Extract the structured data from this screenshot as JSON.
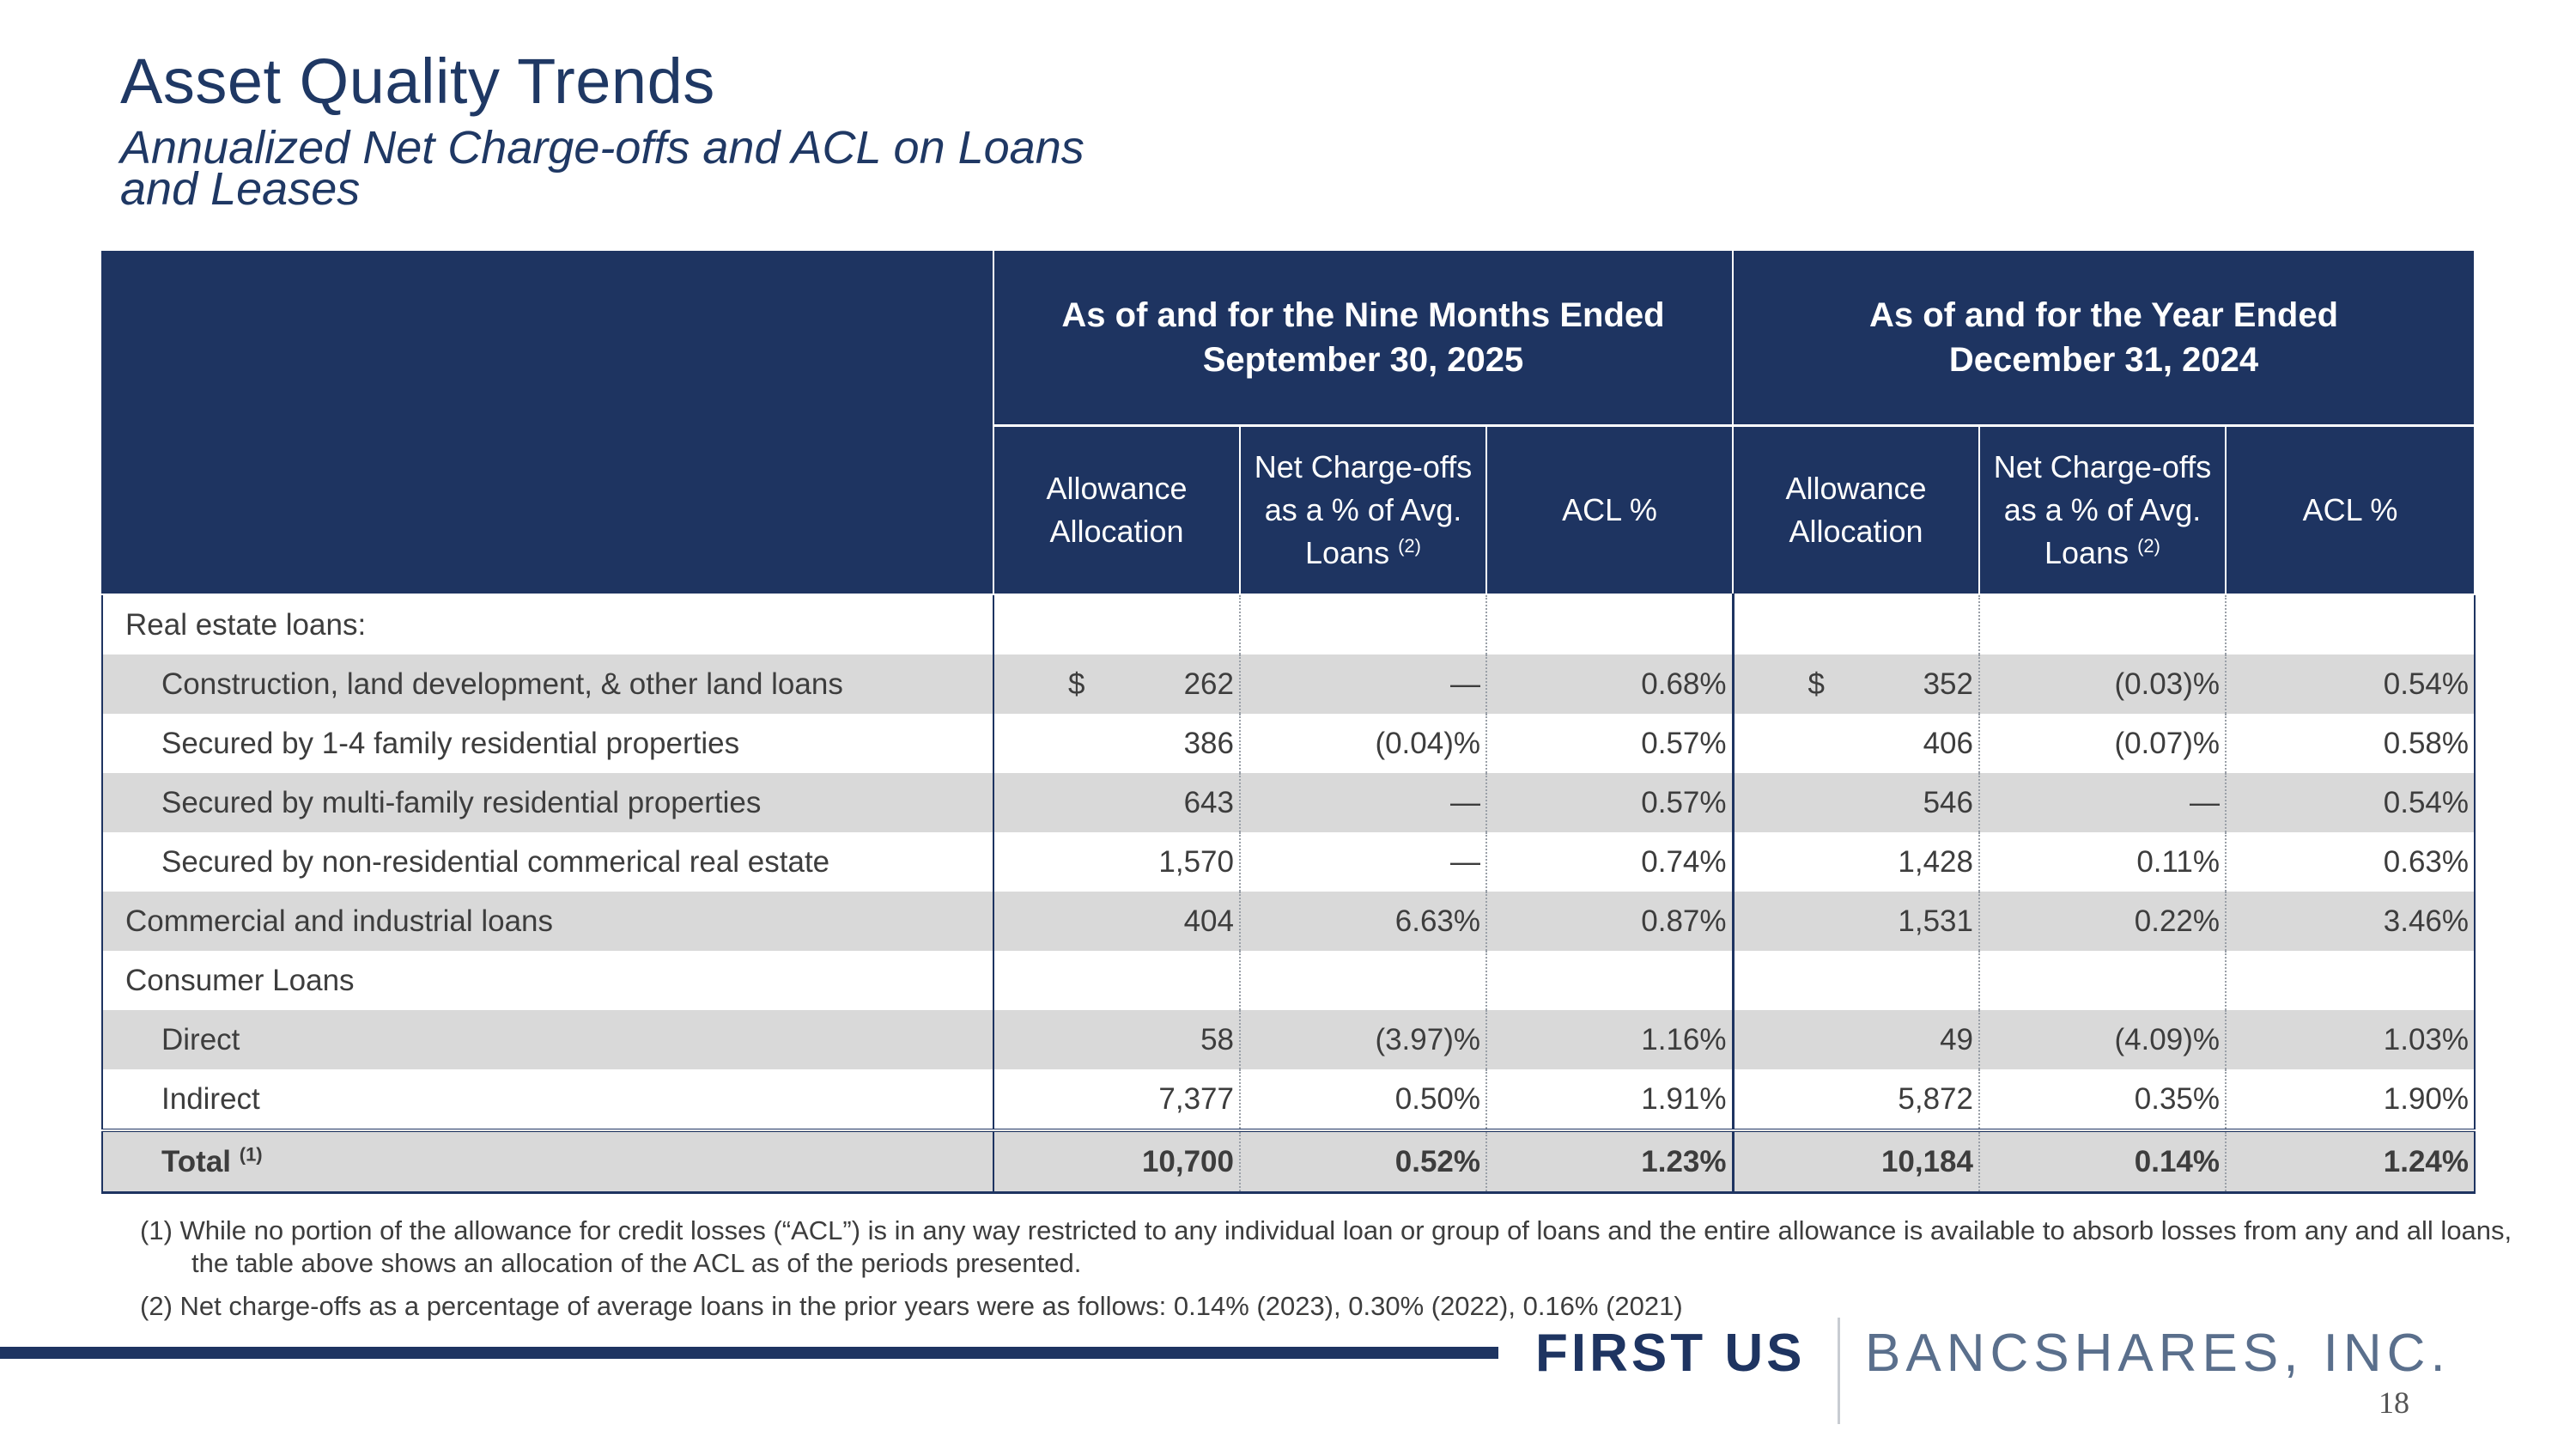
{
  "header": {
    "title": "Asset Quality Trends",
    "subtitle": "Annualized Net Charge-offs and ACL on Loans and Leases"
  },
  "table": {
    "groups": [
      {
        "line1": "As of and for the Nine Months Ended",
        "line2": "September 30, 2025"
      },
      {
        "line1": "As of and for the Year Ended",
        "line2": "December 31, 2024"
      }
    ],
    "subheaders": {
      "alloc_line1": "Allowance",
      "alloc_line2": "Allocation",
      "nco_line1": "Net Charge-offs",
      "nco_line2": "as a % of Avg.",
      "nco_line3": "Loans",
      "nco_sup": "(2)",
      "acl": "ACL %"
    },
    "rows": [
      {
        "label": "Real estate loans:",
        "cells": [
          "",
          "",
          "",
          "",
          "",
          ""
        ]
      },
      {
        "label": "Construction, land development, & other land loans",
        "dollar1": "$",
        "dollar2": "$",
        "cells": [
          "262",
          "—",
          "0.68%",
          "352",
          "(0.03)%",
          "0.54%"
        ]
      },
      {
        "label": "Secured by 1-4 family residential properties",
        "cells": [
          "386",
          "(0.04)%",
          "0.57%",
          "406",
          "(0.07)%",
          "0.58%"
        ]
      },
      {
        "label": "Secured by multi-family residential properties",
        "cells": [
          "643",
          "—",
          "0.57%",
          "546",
          "—",
          "0.54%"
        ]
      },
      {
        "label": "Secured by non-residential commerical real estate",
        "cells": [
          "1,570",
          "—",
          "0.74%",
          "1,428",
          "0.11%",
          "0.63%"
        ]
      },
      {
        "label": "Commercial and industrial loans",
        "cells": [
          "404",
          "6.63%",
          "0.87%",
          "1,531",
          "0.22%",
          "3.46%"
        ]
      },
      {
        "label": "Consumer Loans",
        "cells": [
          "",
          "",
          "",
          "",
          "",
          ""
        ]
      },
      {
        "label": "Direct",
        "cells": [
          "58",
          "(3.97)%",
          "1.16%",
          "49",
          "(4.09)%",
          "1.03%"
        ]
      },
      {
        "label": "Indirect",
        "cells": [
          "7,377",
          "0.50%",
          "1.91%",
          "5,872",
          "0.35%",
          "1.90%"
        ]
      },
      {
        "label": "Total",
        "sup": "(1)",
        "cells": [
          "10,700",
          "0.52%",
          "1.23%",
          "10,184",
          "0.14%",
          "1.24%"
        ]
      }
    ]
  },
  "footnotes": {
    "fn1": "(1)  While no portion of the allowance for credit losses (“ACL”) is in any way restricted to any individual loan or group of loans and the entire allowance is available to absorb losses from any and all loans, the table above shows an allocation of the ACL as of the periods presented.",
    "fn2": "(2) Net charge-offs as a percentage of average loans in the prior years were as follows: 0.14% (2023), 0.30% (2022), 0.16% (2021)"
  },
  "footer": {
    "logo_left": "FIRST US",
    "logo_right": "BANCSHARES, INC.",
    "page_number": "18"
  }
}
